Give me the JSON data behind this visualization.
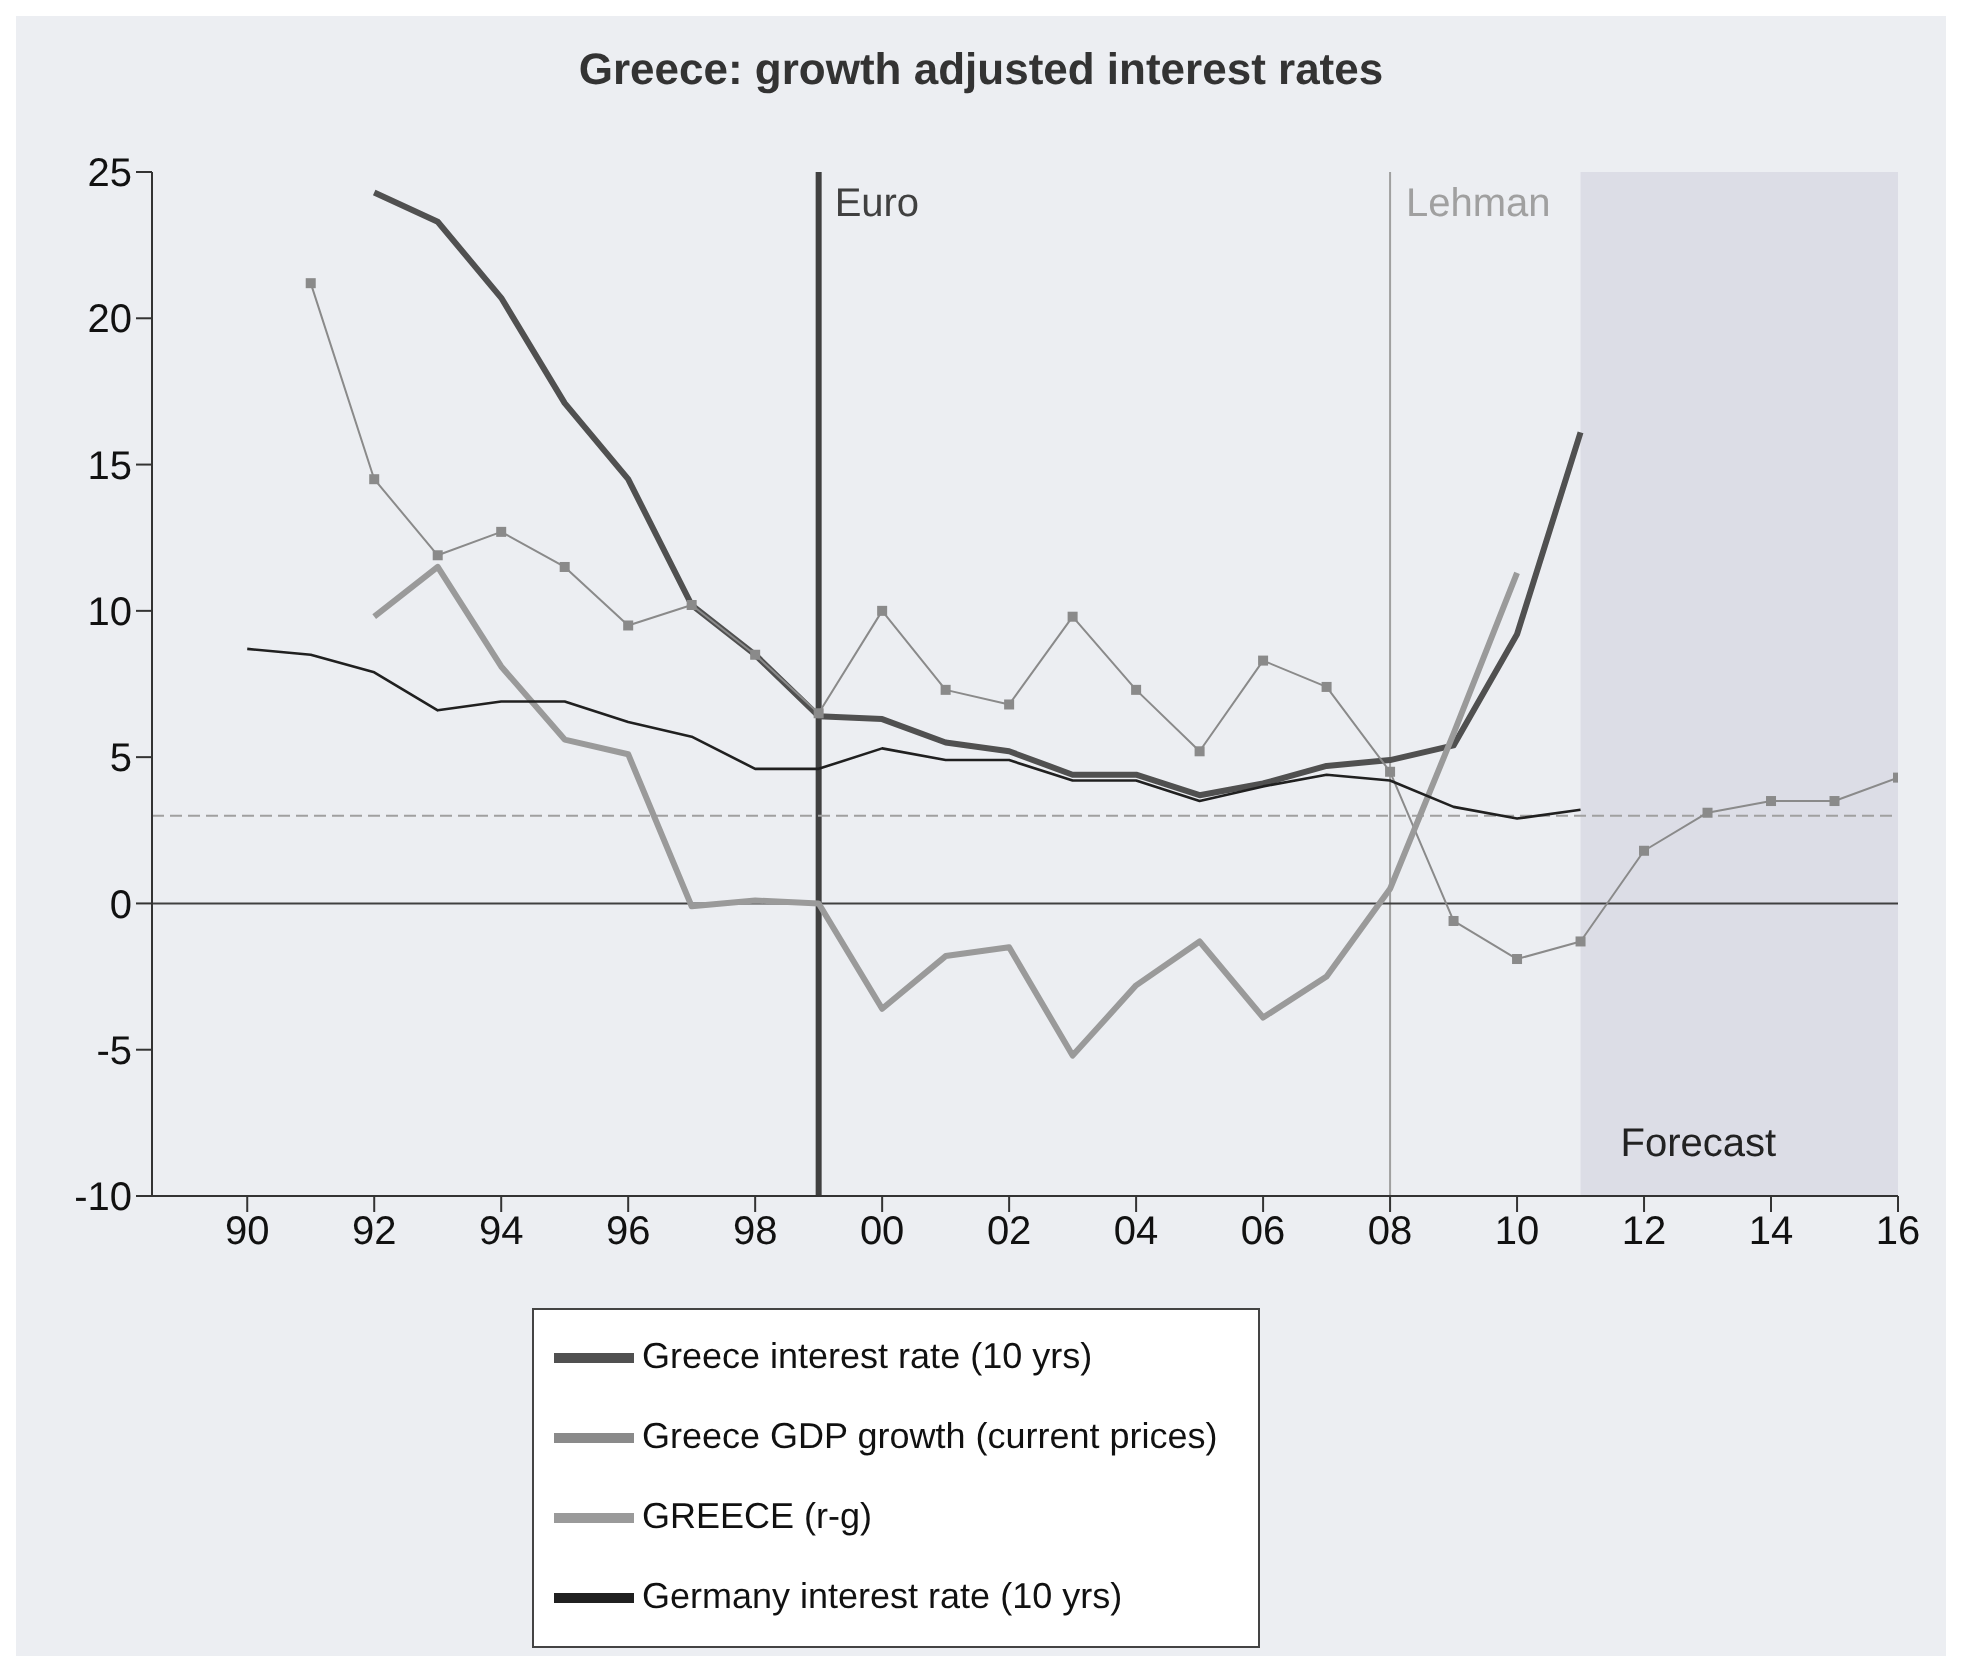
{
  "chart_data": {
    "type": "line",
    "title": "Greece: growth adjusted interest rates",
    "x": [
      1990,
      1991,
      1992,
      1993,
      1994,
      1995,
      1996,
      1997,
      1998,
      1999,
      2000,
      2001,
      2002,
      2003,
      2004,
      2005,
      2006,
      2007,
      2008,
      2009,
      2010,
      2011,
      2012,
      2013,
      2014,
      2015,
      2016
    ],
    "series": [
      {
        "name": "Greece interest rate (10 yrs)",
        "color": "#505050",
        "marker": "none",
        "values": [
          null,
          null,
          24.3,
          23.3,
          20.7,
          17.1,
          14.5,
          10.2,
          8.5,
          6.4,
          6.3,
          5.5,
          5.2,
          4.4,
          4.4,
          3.7,
          4.1,
          4.7,
          4.9,
          5.4,
          9.2,
          16.1,
          null,
          null,
          null,
          null,
          null
        ]
      },
      {
        "name": "Greece GDP growth (current prices)",
        "color": "#8a8a8a",
        "marker": "square",
        "values": [
          null,
          21.2,
          14.5,
          11.9,
          12.7,
          11.5,
          9.5,
          10.2,
          8.5,
          6.5,
          10.0,
          7.3,
          6.8,
          9.8,
          7.3,
          5.2,
          8.3,
          7.4,
          4.5,
          -0.6,
          -1.9,
          -1.3,
          1.8,
          3.1,
          3.5,
          3.5,
          4.3
        ]
      },
      {
        "name": "GREECE (r-g)",
        "color": "#9a9a9a",
        "marker": "none",
        "values": [
          null,
          null,
          9.8,
          11.5,
          8.1,
          5.6,
          5.1,
          -0.1,
          0.1,
          0.0,
          -3.6,
          -1.8,
          -1.5,
          -5.2,
          -2.8,
          -1.3,
          -3.9,
          -2.5,
          0.5,
          5.8,
          11.3,
          null,
          null,
          null,
          null,
          null,
          null
        ]
      },
      {
        "name": "Germany interest rate (10 yrs)",
        "color": "#202020",
        "marker": "none",
        "values": [
          8.7,
          8.5,
          7.9,
          6.6,
          6.9,
          6.9,
          6.2,
          5.7,
          4.6,
          4.6,
          5.3,
          4.9,
          4.9,
          4.2,
          4.2,
          3.5,
          4.0,
          4.4,
          4.2,
          3.3,
          2.9,
          3.2,
          null,
          null,
          null,
          null,
          null
        ]
      }
    ],
    "xlim": [
      1988.5,
      2016
    ],
    "xticks": [
      {
        "value": 1990,
        "label": "90"
      },
      {
        "value": 1992,
        "label": "92"
      },
      {
        "value": 1994,
        "label": "94"
      },
      {
        "value": 1996,
        "label": "96"
      },
      {
        "value": 1998,
        "label": "98"
      },
      {
        "value": 2000,
        "label": "00"
      },
      {
        "value": 2002,
        "label": "02"
      },
      {
        "value": 2004,
        "label": "04"
      },
      {
        "value": 2006,
        "label": "06"
      },
      {
        "value": 2008,
        "label": "08"
      },
      {
        "value": 2010,
        "label": "10"
      },
      {
        "value": 2012,
        "label": "12"
      },
      {
        "value": 2014,
        "label": "14"
      },
      {
        "value": 2016,
        "label": "16"
      }
    ],
    "ylim": [
      -10,
      25
    ],
    "yticks": [
      -10,
      -5,
      0,
      5,
      10,
      15,
      20,
      25
    ],
    "ref_lines": [
      {
        "axis": "x",
        "value": 1999,
        "label": "Euro",
        "color": "#404040"
      },
      {
        "axis": "x",
        "value": 2008,
        "label": "Lehman",
        "color": "#a0a0a0"
      },
      {
        "axis": "y",
        "value": 0,
        "color": "#404040"
      },
      {
        "axis": "y",
        "value": 3,
        "color": "#a0a0a0",
        "line_style": "dashed"
      }
    ],
    "bands": [
      {
        "axis": "x",
        "from": 2011,
        "to": 2016,
        "label": "Forecast",
        "color": "#dcdde6"
      }
    ],
    "grid": false,
    "legend": "bottom"
  }
}
